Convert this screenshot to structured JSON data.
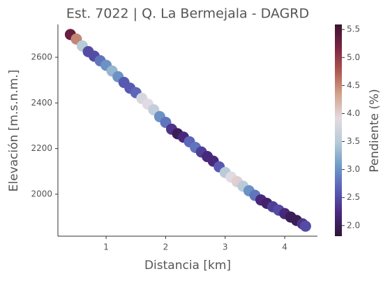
{
  "chart_data": {
    "type": "scatter",
    "title": "Est. 7022 | Q. La Bermejala - DAGRD",
    "x_label": "Distancia [km]",
    "y_label": "Elevación [m.s.n.m.]",
    "colorbar_label": "Pendiente (%)",
    "x": [
      0.4,
      0.5,
      0.6,
      0.7,
      0.8,
      0.9,
      1.0,
      1.1,
      1.2,
      1.3,
      1.4,
      1.5,
      1.6,
      1.7,
      1.8,
      1.9,
      2.0,
      2.1,
      2.2,
      2.3,
      2.4,
      2.5,
      2.6,
      2.7,
      2.8,
      2.9,
      3.0,
      3.1,
      3.2,
      3.3,
      3.4,
      3.5,
      3.6,
      3.7,
      3.8,
      3.9,
      4.0,
      4.1,
      4.2,
      4.3,
      4.35
    ],
    "y": [
      2700,
      2680,
      2650,
      2625,
      2605,
      2585,
      2565,
      2540,
      2515,
      2490,
      2465,
      2445,
      2420,
      2395,
      2370,
      2340,
      2315,
      2285,
      2265,
      2250,
      2230,
      2205,
      2185,
      2165,
      2145,
      2120,
      2095,
      2075,
      2055,
      2035,
      2015,
      1995,
      1975,
      1960,
      1945,
      1930,
      1915,
      1900,
      1885,
      1870,
      1860
    ],
    "color_values": [
      5.3,
      4.5,
      3.5,
      2.5,
      2.5,
      2.8,
      3.0,
      3.3,
      3.0,
      2.6,
      2.6,
      2.7,
      3.8,
      3.9,
      3.6,
      3.0,
      2.8,
      2.3,
      2.0,
      2.2,
      2.7,
      2.8,
      2.4,
      2.2,
      2.2,
      2.6,
      3.5,
      3.9,
      4.0,
      3.5,
      3.0,
      2.8,
      2.2,
      2.1,
      2.4,
      2.5,
      2.2,
      2.0,
      2.0,
      2.3,
      2.5
    ],
    "colormap": [
      "#2f1436",
      "#4a2a80",
      "#5a5fb8",
      "#6f9cc6",
      "#b7cbd8",
      "#e3dae2",
      "#d2a58e",
      "#b0584f",
      "#7a2543",
      "#3e1232"
    ],
    "xlim": [
      0.19,
      4.55
    ],
    "ylim": [
      1816,
      2744
    ],
    "clim": [
      1.81,
      5.59
    ],
    "xticks": [
      1,
      2,
      3,
      4
    ],
    "yticks": [
      2000,
      2200,
      2400,
      2600
    ],
    "cticks": [
      {
        "value": 2,
        "label": "2.0"
      },
      2.5,
      {
        "value": 3,
        "label": "3.0"
      },
      3.5,
      {
        "value": 4,
        "label": "4.0"
      },
      4.5,
      {
        "value": 5,
        "label": "5.0"
      },
      5.5
    ]
  }
}
